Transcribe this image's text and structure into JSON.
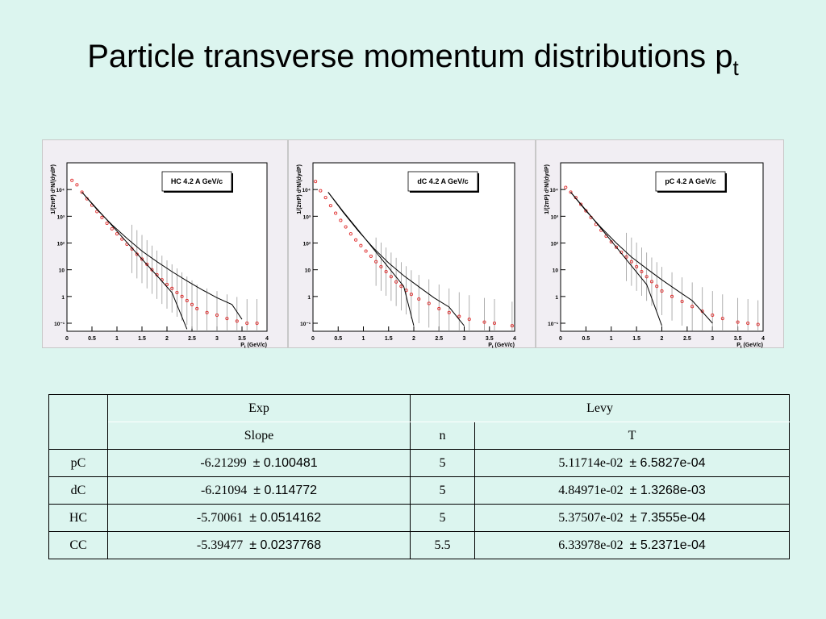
{
  "title": {
    "text": "Particle transverse momentum distributions p",
    "subscript": "t"
  },
  "chart_data": [
    {
      "type": "scatter",
      "legend": "HC 4.2 A GeV/c",
      "xlabel": "P",
      "xlabel_sub": "t",
      "xlabel_unit": " (GeV/c)",
      "ylabel": "1/(2πP) d²N/(dydP)",
      "yscale": "log",
      "xlim": [
        0,
        4
      ],
      "ylim": [
        0.05,
        100000
      ],
      "xticks": [
        "0",
        "0.5",
        "1",
        "1.5",
        "2",
        "2.5",
        "3",
        "3.5",
        "4"
      ],
      "yticks": [
        "10⁻¹",
        "1",
        "10",
        "10²",
        "10³",
        "10⁴"
      ],
      "points": {
        "x": [
          0.1,
          0.2,
          0.3,
          0.4,
          0.5,
          0.6,
          0.7,
          0.8,
          0.9,
          1.0,
          1.1,
          1.2,
          1.3,
          1.4,
          1.5,
          1.6,
          1.7,
          1.8,
          1.9,
          2.0,
          2.1,
          2.2,
          2.3,
          2.4,
          2.5,
          2.6,
          2.8,
          3.0,
          3.2,
          3.4,
          3.6,
          3.8
        ],
        "y": [
          22000,
          15000,
          8000,
          4500,
          2600,
          1500,
          900,
          550,
          340,
          220,
          140,
          90,
          60,
          38,
          25,
          16,
          10,
          6.5,
          4.2,
          2.8,
          2.0,
          1.4,
          1.0,
          0.7,
          0.5,
          0.35,
          0.25,
          0.2,
          0.15,
          0.12,
          0.1,
          0.1
        ]
      },
      "fits": [
        {
          "x": [
            0.3,
            0.6,
            0.9,
            1.2,
            1.5,
            1.8,
            2.1,
            2.4
          ],
          "y": [
            8000,
            1900,
            450,
            105,
            25,
            6,
            1.4,
            0.06
          ]
        },
        {
          "x": [
            0.3,
            0.6,
            0.9,
            1.2,
            1.5,
            1.8,
            2.1,
            2.4,
            2.7,
            3.0,
            3.3,
            3.5
          ],
          "y": [
            8000,
            1800,
            480,
            150,
            50,
            20,
            8.5,
            3.8,
            1.8,
            0.9,
            0.5,
            0.14
          ]
        }
      ]
    },
    {
      "type": "scatter",
      "legend": "dC 4.2 A GeV/c",
      "xlabel": "P",
      "xlabel_sub": "t",
      "xlabel_unit": " (GeV/c)",
      "ylabel": "1/(2πP) d²N/(dydP)",
      "yscale": "log",
      "xlim": [
        0,
        4
      ],
      "ylim": [
        0.05,
        100000
      ],
      "xticks": [
        "0",
        "0.5",
        "1",
        "1.5",
        "2",
        "2.5",
        "3",
        "3.5",
        "4"
      ],
      "yticks": [
        "10⁻¹",
        "1",
        "10",
        "10²",
        "10³",
        "10⁴"
      ],
      "points": {
        "x": [
          0.05,
          0.15,
          0.25,
          0.35,
          0.45,
          0.55,
          0.65,
          0.75,
          0.85,
          0.95,
          1.05,
          1.15,
          1.25,
          1.35,
          1.45,
          1.55,
          1.65,
          1.75,
          1.85,
          1.95,
          2.1,
          2.3,
          2.5,
          2.7,
          2.9,
          3.1,
          3.4,
          3.6,
          3.95
        ],
        "y": [
          20000,
          9000,
          5000,
          2500,
          1300,
          700,
          400,
          220,
          130,
          80,
          50,
          32,
          20,
          13,
          8.5,
          5.5,
          3.5,
          2.4,
          1.7,
          1.2,
          0.8,
          0.55,
          0.35,
          0.25,
          0.18,
          0.14,
          0.11,
          0.1,
          0.08
        ]
      },
      "fits": [
        {
          "x": [
            0.3,
            0.6,
            0.9,
            1.2,
            1.5,
            1.8,
            2.0
          ],
          "y": [
            8000,
            1500,
            300,
            60,
            12,
            2.4,
            0.08
          ]
        },
        {
          "x": [
            0.3,
            0.6,
            0.9,
            1.2,
            1.5,
            1.8,
            2.1,
            2.4,
            2.7,
            3.0
          ],
          "y": [
            8000,
            1400,
            280,
            65,
            18,
            6,
            2.3,
            0.9,
            0.4,
            0.08
          ]
        }
      ]
    },
    {
      "type": "scatter",
      "legend": "pC 4.2 A GeV/c",
      "xlabel": "P",
      "xlabel_sub": "t",
      "xlabel_unit": " (GeV/c)",
      "ylabel": "1/(2πP) d²N/(dydP)",
      "yscale": "log",
      "xlim": [
        0,
        4
      ],
      "ylim": [
        0.05,
        100000
      ],
      "xticks": [
        "0",
        "0.5",
        "1",
        "1.5",
        "2",
        "2.5",
        "3",
        "3.5",
        "4"
      ],
      "yticks": [
        "10⁻¹",
        "1",
        "10",
        "10²",
        "10³",
        "10⁴"
      ],
      "points": {
        "x": [
          0.1,
          0.2,
          0.3,
          0.4,
          0.5,
          0.6,
          0.7,
          0.8,
          0.9,
          1.0,
          1.1,
          1.2,
          1.3,
          1.4,
          1.5,
          1.6,
          1.7,
          1.8,
          1.9,
          2.0,
          2.2,
          2.4,
          2.6,
          2.8,
          3.0,
          3.2,
          3.5,
          3.7,
          3.9
        ],
        "y": [
          12000,
          8000,
          5000,
          2800,
          1600,
          900,
          500,
          300,
          180,
          110,
          70,
          45,
          30,
          20,
          13,
          8.5,
          5.5,
          3.6,
          2.4,
          1.6,
          1.0,
          0.65,
          0.42,
          0.28,
          0.2,
          0.15,
          0.11,
          0.1,
          0.09
        ]
      },
      "fits": [
        {
          "x": [
            0.2,
            0.5,
            0.8,
            1.1,
            1.4,
            1.7,
            2.0
          ],
          "y": [
            8000,
            1700,
            350,
            70,
            14,
            2.8,
            0.08
          ]
        },
        {
          "x": [
            0.2,
            0.5,
            0.8,
            1.1,
            1.4,
            1.7,
            2.0,
            2.3,
            2.6,
            3.0
          ],
          "y": [
            8000,
            1600,
            380,
            100,
            30,
            11,
            4.2,
            1.7,
            0.7,
            0.1
          ]
        }
      ]
    }
  ],
  "table": {
    "headers": {
      "exp": "Exp",
      "levy": "Levy",
      "slope": "Slope",
      "n": "n",
      "T": "T"
    },
    "rows": [
      {
        "label": "pC",
        "slope": "-6.21299",
        "slope_err": "± 0.100481",
        "n": "5",
        "T": "5.11714e-02",
        "T_err": "± 6.5827e-04"
      },
      {
        "label": "dC",
        "slope": "-6.21094",
        "slope_err": "± 0.114772",
        "n": "5",
        "T": "4.84971e-02",
        "T_err": "± 1.3268e-03"
      },
      {
        "label": "HC",
        "slope": "-5.70061",
        "slope_err": "± 0.0514162",
        "n": "5",
        "T": "5.37507e-02",
        "T_err": "± 7.3555e-04"
      },
      {
        "label": "CC",
        "slope": "-5.39477",
        "slope_err": "± 0.0237768",
        "n": "5.5",
        "T": "6.33978e-02",
        "T_err": "± 5.2371e-04"
      }
    ]
  }
}
